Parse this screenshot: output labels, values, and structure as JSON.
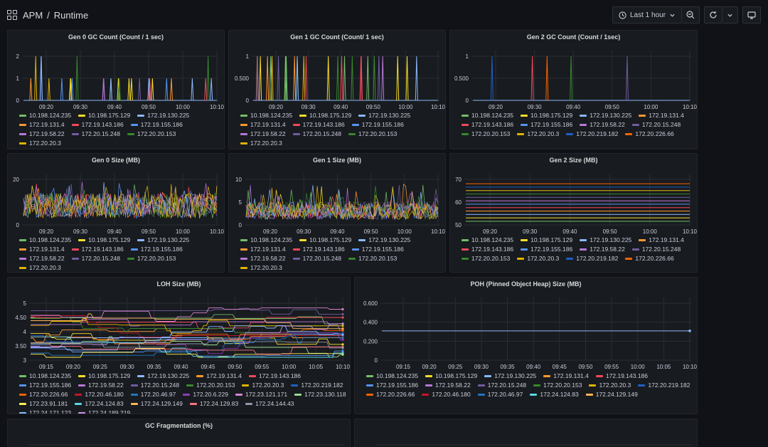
{
  "header": {
    "app": "APM",
    "page": "Runtime",
    "time_range": "Last 1 hour",
    "icons": [
      "apps-icon",
      "clock-icon",
      "chevron-down-icon",
      "zoom-out-icon",
      "refresh-icon",
      "chevron-down-icon",
      "tv-mode-icon"
    ]
  },
  "palette": {
    "10.198.124.235": "#73bf69",
    "10.198.175.129": "#fade2a",
    "172.19.130.225": "#8ab8ff",
    "172.19.131.4": "#ff9830",
    "172.19.143.186": "#f2495c",
    "172.19.155.186": "#5794f2",
    "172.19.58.22": "#b877d9",
    "172.20.15.248": "#705da0",
    "172.20.20.153": "#37872d",
    "172.20.20.3": "#e0b400",
    "172.20.219.182": "#1f60c4",
    "172.20.226.66": "#fa6400",
    "172.20.46.180": "#c4162a",
    "172.20.46.97": "#1f78c1",
    "172.20.6.229": "#8f3bb8",
    "172.23.121.171": "#d683ce",
    "172.23.130.118": "#96d98d",
    "172.23.91.181": "#ffee52",
    "172.24.124.83": "#5ad8e6",
    "172.24.129.149": "#ffb357",
    "172.24.129.83": "#ff7383",
    "172.24.144.43": "#8f9aa8",
    "172.24.171.123": "#8ab8ff",
    "172.24.189.219": "#ca95e5"
  },
  "panels": [
    {
      "id": "gen0-gc-count",
      "title": "Gen 0 GC Count (Count / 1 sec)",
      "chart_data": {
        "type": "line",
        "y_ticks": [
          "2",
          "1",
          "0"
        ],
        "ylim": [
          0,
          2
        ],
        "x_ticks": [
          "09:20",
          "09:30",
          "09:40",
          "09:50",
          "10:00",
          "10:10"
        ],
        "style": "spikes"
      },
      "legend": [
        "10.198.124.235",
        "10.198.175.129",
        "172.19.130.225",
        "172.19.131.4",
        "172.19.143.186",
        "172.19.155.186",
        "172.19.58.22",
        "172.20.15.248",
        "172.20.20.153",
        "172.20.20.3"
      ]
    },
    {
      "id": "gen1-gc-count",
      "title": "Gen 1 GC Count (Count/ 1 sec)",
      "chart_data": {
        "type": "line",
        "y_ticks": [
          "1",
          "0.500",
          "0"
        ],
        "ylim": [
          0,
          1
        ],
        "x_ticks": [
          "09:20",
          "09:30",
          "09:40",
          "09:50",
          "10:00",
          "10:10"
        ],
        "style": "spikes"
      },
      "legend": [
        "10.198.124.235",
        "10.198.175.129",
        "172.19.130.225",
        "172.19.131.4",
        "172.19.143.186",
        "172.19.155.186",
        "172.19.58.22",
        "172.20.15.248",
        "172.20.20.153",
        "172.20.20.3"
      ]
    },
    {
      "id": "gen2-gc-count",
      "title": "Gen 2 GC Count (Count / 1sec)",
      "chart_data": {
        "type": "line",
        "y_ticks": [
          "1",
          "0.500",
          "0"
        ],
        "ylim": [
          0,
          1
        ],
        "x_ticks": [
          "09:20",
          "09:30",
          "09:40",
          "09:50",
          "10:00",
          "10:10"
        ],
        "style": "spikes-sparse"
      },
      "legend": [
        "10.198.124.235",
        "10.198.175.129",
        "172.19.130.225",
        "172.19.131.4",
        "172.19.143.186",
        "172.19.155.186",
        "172.19.58.22",
        "172.20.15.248",
        "172.20.20.153",
        "172.20.20.3",
        "172.20.219.182",
        "172.20.226.66"
      ]
    },
    {
      "id": "gen0-size",
      "title": "Gen 0 Size (MB)",
      "chart_data": {
        "type": "line",
        "y_ticks": [
          "20",
          "0"
        ],
        "ylim": [
          0,
          30
        ],
        "x_ticks": [
          "09:20",
          "09:30",
          "09:40",
          "09:50",
          "10:00",
          "10:10"
        ],
        "style": "noisy-high"
      },
      "legend": [
        "10.198.124.235",
        "10.198.175.129",
        "172.19.130.225",
        "172.19.131.4",
        "172.19.143.186",
        "172.19.155.186",
        "172.19.58.22",
        "172.20.15.248",
        "172.20.20.153",
        "172.20.20.3"
      ]
    },
    {
      "id": "gen1-size",
      "title": "Gen 1 Size (MB)",
      "chart_data": {
        "type": "line",
        "y_ticks": [
          "10",
          "5",
          "0"
        ],
        "ylim": [
          0,
          10
        ],
        "x_ticks": [
          "09:20",
          "09:30",
          "09:40",
          "09:50",
          "10:00",
          "10:10"
        ],
        "style": "noisy-band"
      },
      "legend": [
        "10.198.124.235",
        "10.198.175.129",
        "172.19.130.225",
        "172.19.131.4",
        "172.19.143.186",
        "172.19.155.186",
        "172.19.58.22",
        "172.20.15.248",
        "172.20.20.153",
        "172.20.20.3"
      ]
    },
    {
      "id": "gen2-size",
      "title": "Gen 2 Size (MB)",
      "chart_data": {
        "type": "line",
        "y_ticks": [
          "70",
          "60",
          "50"
        ],
        "ylim": [
          46,
          72
        ],
        "x_ticks": [
          "09:20",
          "09:30",
          "09:40",
          "09:50",
          "10:00",
          "10:10"
        ],
        "style": "flat"
      },
      "legend": [
        "10.198.124.235",
        "10.198.175.129",
        "172.19.130.225",
        "172.19.131.4",
        "172.19.143.186",
        "172.19.155.186",
        "172.19.58.22",
        "172.20.15.248",
        "172.20.20.153",
        "172.20.20.3",
        "172.20.219.182",
        "172.20.226.66"
      ]
    },
    {
      "id": "loh-size",
      "title": "LOH Size (MB)",
      "chart_data": {
        "type": "line",
        "y_ticks": [
          "5",
          "4.50",
          "4",
          "3.50",
          "3"
        ],
        "ylim": [
          3,
          5
        ],
        "x_ticks": [
          "09:15",
          "09:20",
          "09:25",
          "09:30",
          "09:35",
          "09:40",
          "09:45",
          "09:50",
          "09:55",
          "10:00",
          "10:05",
          "10:10"
        ],
        "style": "steps"
      },
      "legend": [
        "10.198.124.235",
        "10.198.175.129",
        "172.19.130.225",
        "172.19.131.4",
        "172.19.143.186",
        "172.19.155.186",
        "172.19.58.22",
        "172.20.15.248",
        "172.20.20.153",
        "172.20.20.3",
        "172.20.219.182",
        "172.20.226.66",
        "172.20.46.180",
        "172.20.46.97",
        "172.20.6.229",
        "172.23.121.171",
        "172.23.130.118",
        "172.23.91.181",
        "172.24.124.83",
        "172.24.129.149",
        "172.24.129.83",
        "172.24.144.43",
        "172.24.171.123",
        "172.24.189.219"
      ]
    },
    {
      "id": "poh-size",
      "title": "POH (Pinned Object Heap) Size (MB)",
      "chart_data": {
        "type": "line",
        "y_ticks": [
          "0.600",
          "0.400",
          "0.200",
          "0"
        ],
        "ylim": [
          0,
          0.7
        ],
        "x_ticks": [
          "09:15",
          "09:20",
          "09:25",
          "09:30",
          "09:35",
          "09:40",
          "09:45",
          "09:50",
          "09:55",
          "10:00",
          "10:05",
          "10:10"
        ],
        "style": "single-flat",
        "value": 0.36
      },
      "legend": [
        "10.198.124.235",
        "10.198.175.129",
        "172.19.130.225",
        "172.19.131.4",
        "172.19.143.186",
        "172.19.155.186",
        "172.19.58.22",
        "172.20.15.248",
        "172.20.20.153",
        "172.20.20.3",
        "172.20.219.182",
        "172.20.226.66",
        "172.20.46.180",
        "172.20.46.97",
        "172.24.124.83",
        "172.24.129.149"
      ]
    },
    {
      "id": "gc-fragmentation",
      "title": "GC Fragmentation (%)",
      "chart_data": {
        "type": "line",
        "style": "clipped"
      },
      "legend": []
    },
    {
      "id": "gc-committed",
      "title": "",
      "chart_data": {
        "type": "line",
        "style": "clipped"
      },
      "legend": []
    }
  ]
}
